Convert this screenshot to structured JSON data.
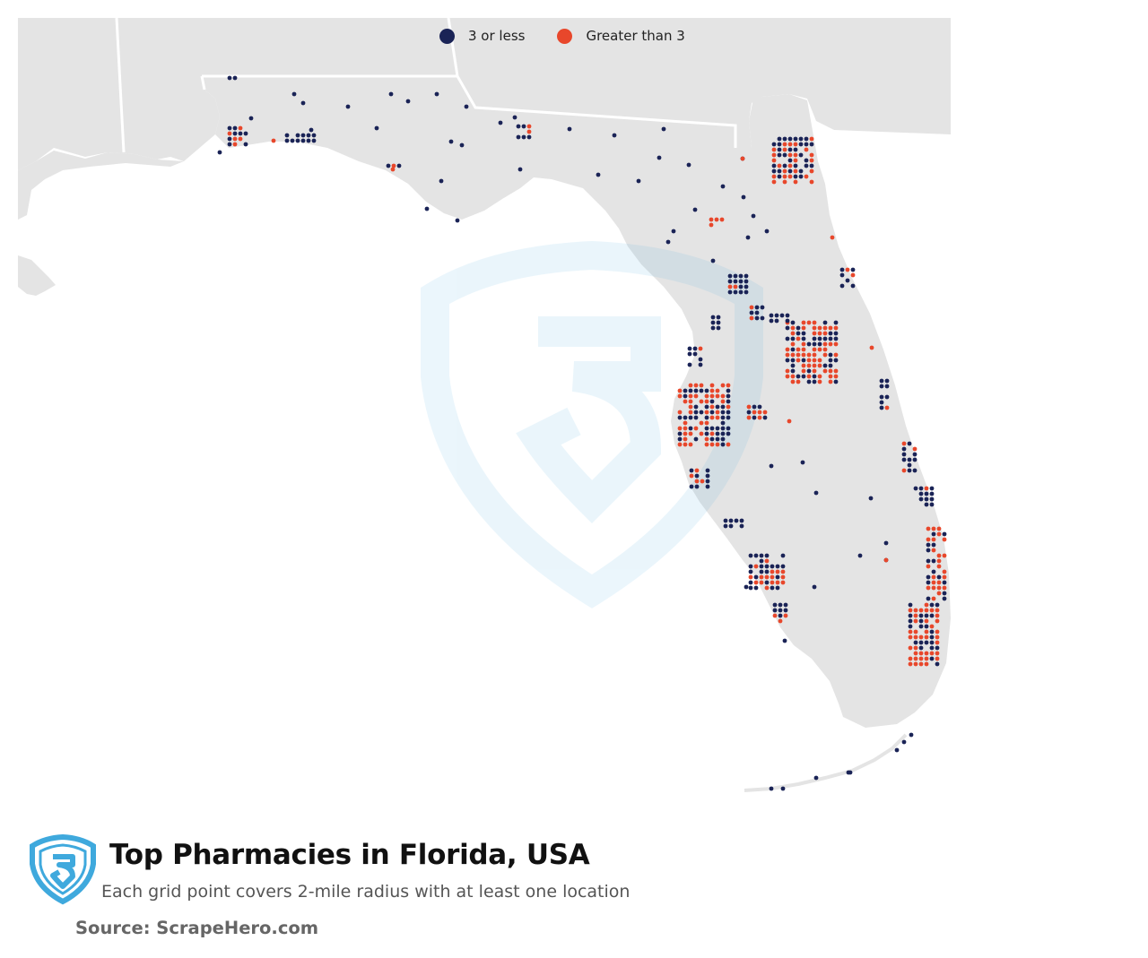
{
  "title": "Top Pharmacies in Florida, USA",
  "subtitle": "Each grid point covers 2-mile radius with at least one location",
  "source": "Source: ScrapeHero.com",
  "legend": [
    {
      "label": "3 or less",
      "color": "#1a2356"
    },
    {
      "label": "Greater than 3",
      "color": "#e8472b"
    }
  ],
  "colors": {
    "land": "#e4e4e4",
    "water": "#ffffff",
    "border": "#ffffff",
    "brand": "#3fa9dd"
  },
  "icons": {
    "logo": "scrapehero-shield-icon",
    "watermark": "scrapehero-watermark-icon"
  }
}
